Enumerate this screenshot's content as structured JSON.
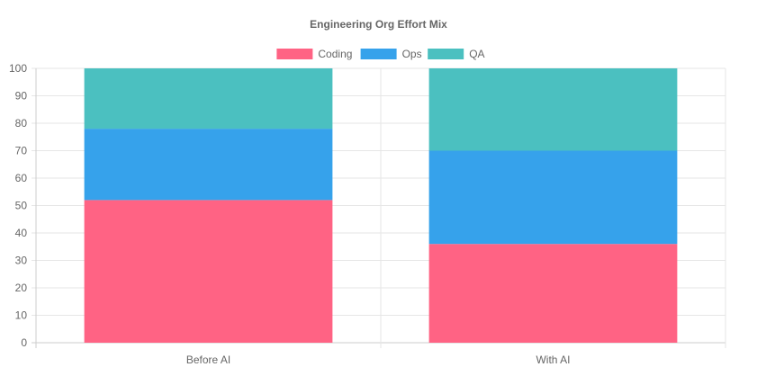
{
  "chart_data": {
    "type": "bar",
    "stacked": true,
    "title": "Engineering Org Effort Mix",
    "categories": [
      "Before AI",
      "With AI"
    ],
    "series": [
      {
        "name": "Coding",
        "values": [
          52,
          36
        ],
        "color": "#ff6384"
      },
      {
        "name": "Ops",
        "values": [
          26,
          34
        ],
        "color": "#36a2eb"
      },
      {
        "name": "QA",
        "values": [
          22,
          30
        ],
        "color": "#4bc0c0"
      }
    ],
    "ylim": [
      0,
      100
    ],
    "yticks": [
      0,
      10,
      20,
      30,
      40,
      50,
      60,
      70,
      80,
      90,
      100
    ],
    "xlabel": "",
    "ylabel": "",
    "legend_position": "top",
    "grid": true
  }
}
